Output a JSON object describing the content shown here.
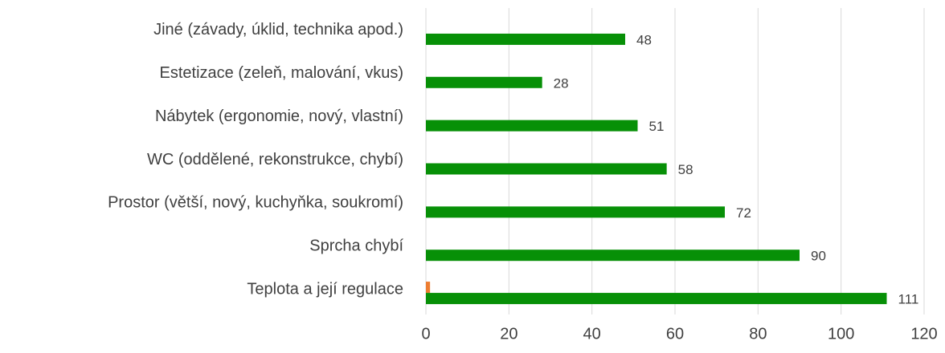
{
  "chart_data": {
    "type": "bar",
    "orientation": "horizontal",
    "categories": [
      "Jiné (závady, úklid, technika apod.)",
      "Estetizace (zeleň, malování, vkus)",
      "Nábytek (ergonomie, nový, vlastní)",
      "WC (oddělené, rekonstrukce, chybí)",
      "Prostor (větší, nový, kuchyňka, soukromí)",
      "Sprcha chybí",
      "Teplota a její regulace"
    ],
    "series": [
      {
        "color": "#ed7d31",
        "values": [
          null,
          null,
          null,
          null,
          null,
          null,
          1
        ]
      },
      {
        "color": "#079007",
        "values": [
          48,
          28,
          51,
          58,
          72,
          90,
          111
        ],
        "data_labels": true
      }
    ],
    "xlim": [
      0,
      120
    ],
    "xticks": [
      0,
      20,
      40,
      60,
      80,
      100,
      120
    ],
    "grid": true
  }
}
